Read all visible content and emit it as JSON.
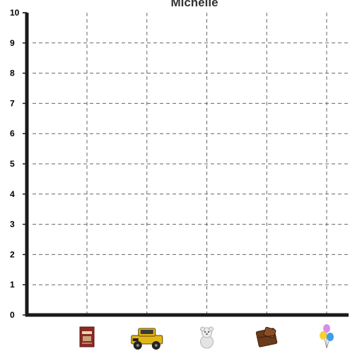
{
  "chart_data": {
    "type": "bar",
    "title": "Michelle",
    "xlabel": "",
    "ylabel": "",
    "ylim": [
      0,
      10
    ],
    "y_ticks": [
      "0",
      "1",
      "2",
      "3",
      "4",
      "5",
      "6",
      "7",
      "8",
      "9",
      "10"
    ],
    "categories": [
      "book-icon",
      "toy-truck-icon",
      "teddy-bear-icon",
      "chocolate-icon",
      "balloons-icon"
    ],
    "values": [
      0,
      0,
      0,
      0,
      0
    ],
    "grid": true,
    "grid_style": "dashed",
    "colors": {
      "axis": "#1a1a1a",
      "grid": "#666666",
      "text": "#000000",
      "title": "#333333"
    }
  }
}
